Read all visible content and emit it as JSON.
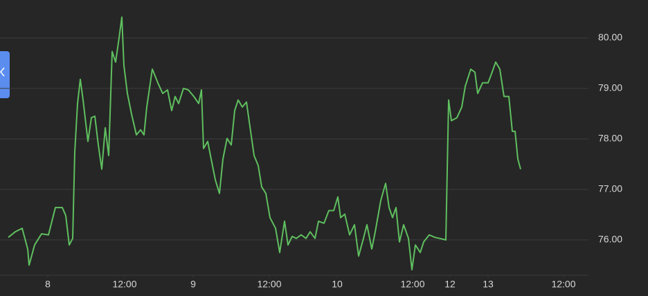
{
  "chart_data": {
    "type": "line",
    "x": [
      12,
      22,
      32,
      40,
      42,
      50,
      60,
      70,
      80,
      90,
      95,
      100,
      105,
      108,
      112,
      116,
      120,
      127,
      132,
      137,
      142,
      147,
      152,
      157,
      162,
      167,
      172,
      176,
      179,
      184,
      190,
      197,
      203,
      208,
      212,
      220,
      228,
      235,
      242,
      248,
      253,
      258,
      265,
      272,
      280,
      287,
      291,
      294,
      300,
      305,
      311,
      317,
      322,
      328,
      334,
      339,
      344,
      350,
      356,
      362,
      367,
      373,
      378,
      384,
      390,
      398,
      404,
      411,
      416,
      422,
      428,
      435,
      442,
      448,
      455,
      460,
      468,
      475,
      482,
      488,
      492,
      498,
      505,
      512,
      518,
      525,
      530,
      537,
      542,
      550,
      557,
      562,
      567,
      572,
      577,
      583,
      590,
      595,
      600,
      607,
      612,
      620,
      628,
      635,
      644,
      648,
      652,
      660,
      667,
      672,
      680,
      686,
      690,
      697,
      705,
      710,
      716,
      722,
      728,
      735,
      740,
      744,
      748,
      752
    ],
    "series": [
      {
        "color": "#5fbf5f",
        "values": [
          76.05,
          76.16,
          76.23,
          75.82,
          75.5,
          75.9,
          76.12,
          76.1,
          76.64,
          76.64,
          76.48,
          75.9,
          76.03,
          77.74,
          78.7,
          79.18,
          78.77,
          77.95,
          78.42,
          78.45,
          77.88,
          77.4,
          78.22,
          77.67,
          79.73,
          79.52,
          80.0,
          80.41,
          79.45,
          78.9,
          78.49,
          78.08,
          78.18,
          78.08,
          78.63,
          79.38,
          79.11,
          78.9,
          78.97,
          78.56,
          78.84,
          78.7,
          79.0,
          78.97,
          78.84,
          78.7,
          78.97,
          77.81,
          77.95,
          77.6,
          77.19,
          76.92,
          77.6,
          78.01,
          77.88,
          78.56,
          78.77,
          78.63,
          78.73,
          78.15,
          77.67,
          77.47,
          77.05,
          76.92,
          76.44,
          76.23,
          75.75,
          76.37,
          75.9,
          76.07,
          76.03,
          76.1,
          76.03,
          76.16,
          76.03,
          76.37,
          76.33,
          76.58,
          76.58,
          76.85,
          76.44,
          76.51,
          76.1,
          76.3,
          75.68,
          76.03,
          76.3,
          75.82,
          76.16,
          76.78,
          77.12,
          76.64,
          76.44,
          76.64,
          75.96,
          76.3,
          76.03,
          75.41,
          75.9,
          75.75,
          75.96,
          76.1,
          76.05,
          76.03,
          76.0,
          78.77,
          78.36,
          78.42,
          78.63,
          79.04,
          79.38,
          79.32,
          78.9,
          79.11,
          79.11,
          79.29,
          79.52,
          79.38,
          78.84,
          78.84,
          78.15,
          78.15,
          77.6,
          77.4
        ]
      }
    ],
    "xlim": [
      0,
      850
    ],
    "xticks": [
      {
        "value": 69,
        "label": "8"
      },
      {
        "value": 180,
        "label": "12:00"
      },
      {
        "value": 279,
        "label": "9"
      },
      {
        "value": 389,
        "label": "12:00"
      },
      {
        "value": 487,
        "label": "10"
      },
      {
        "value": 596,
        "label": "12:00"
      },
      {
        "value": 650,
        "label": "12"
      },
      {
        "value": 705,
        "label": "13"
      },
      {
        "value": 814,
        "label": "12:00"
      }
    ],
    "ylim": [
      75.3,
      80.75
    ],
    "yticks": [
      {
        "value": 76,
        "label": "76.00"
      },
      {
        "value": 77,
        "label": "77.00"
      },
      {
        "value": 78,
        "label": "78.00"
      },
      {
        "value": 79,
        "label": "79.00"
      },
      {
        "value": 80,
        "label": "80.00"
      }
    ],
    "grid": true
  }
}
